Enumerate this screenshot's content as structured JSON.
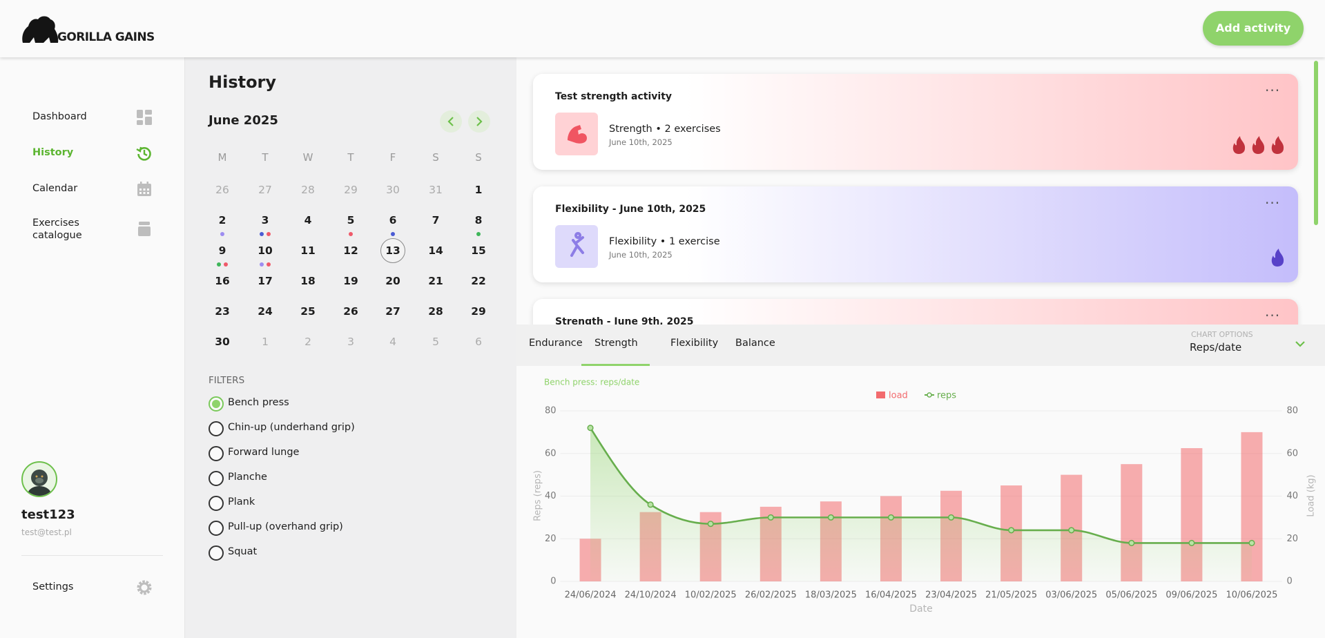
{
  "header": {
    "logo": "GORILLA GAINS",
    "action": "Add activity"
  },
  "nav": [
    {
      "label": "Dashboard"
    },
    {
      "label": "History",
      "active": true
    },
    {
      "label": "Calendar"
    },
    {
      "label": "Exercises catalogue"
    }
  ],
  "user": {
    "name": "test123",
    "email": "test@test.pl"
  },
  "settings": "Settings",
  "history": {
    "title": "History",
    "month": "June 2025",
    "weekdays": [
      "M",
      "T",
      "W",
      "T",
      "F",
      "S",
      "S"
    ],
    "weeks": [
      [
        {
          "day": 26,
          "muted": true
        },
        {
          "day": 27,
          "muted": true
        },
        {
          "day": 28,
          "muted": true
        },
        {
          "day": 29,
          "muted": true
        },
        {
          "day": 30,
          "muted": true
        },
        {
          "day": 31,
          "muted": true
        },
        {
          "day": 1
        }
      ],
      [
        {
          "day": 2,
          "dots": [
            "#9d8df1"
          ]
        },
        {
          "day": 3,
          "dots": [
            "#4a5bd4",
            "#ef5a6a"
          ]
        },
        {
          "day": 4
        },
        {
          "day": 5,
          "dots": [
            "#ef5a6a"
          ]
        },
        {
          "day": 6,
          "dots": [
            "#4a5bd4"
          ]
        },
        {
          "day": 7
        },
        {
          "day": 8,
          "dots": [
            "#3fb65a"
          ]
        }
      ],
      [
        {
          "day": 9,
          "dots": [
            "#3fb65a",
            "#ef5a6a"
          ]
        },
        {
          "day": 10,
          "dots": [
            "#9d8df1",
            "#ef5a6a"
          ]
        },
        {
          "day": 11
        },
        {
          "day": 12
        },
        {
          "day": 13,
          "selected": true
        },
        {
          "day": 14
        },
        {
          "day": 15
        }
      ],
      [
        {
          "day": 16
        },
        {
          "day": 17
        },
        {
          "day": 18
        },
        {
          "day": 19
        },
        {
          "day": 20
        },
        {
          "day": 21
        },
        {
          "day": 22
        }
      ],
      [
        {
          "day": 23
        },
        {
          "day": 24
        },
        {
          "day": 25
        },
        {
          "day": 26
        },
        {
          "day": 27
        },
        {
          "day": 28
        },
        {
          "day": 29
        }
      ],
      [
        {
          "day": 30
        },
        {
          "day": 1,
          "muted": true
        },
        {
          "day": 2,
          "muted": true
        },
        {
          "day": 3,
          "muted": true
        },
        {
          "day": 4,
          "muted": true
        },
        {
          "day": 5,
          "muted": true
        },
        {
          "day": 6,
          "muted": true
        }
      ]
    ]
  },
  "filters": {
    "title": "FILTERS",
    "options": [
      {
        "label": "Bench press",
        "checked": true
      },
      {
        "label": "Chin-up (underhand grip)"
      },
      {
        "label": "Forward lunge"
      },
      {
        "label": "Planche"
      },
      {
        "label": "Plank"
      },
      {
        "label": "Pull-up (overhand grip)"
      },
      {
        "label": "Squat"
      }
    ]
  },
  "activities": [
    {
      "title": "Test strength activity",
      "summary": "Strength • 2 exercises",
      "date": "June 10th, 2025",
      "intensity": 3,
      "color": "#ffc4c7",
      "icon_bg": "#ffd2d5",
      "flame": "#c0323d"
    },
    {
      "title": "Flexibility - June 10th, 2025",
      "summary": "Flexibility • 1 exercise",
      "date": "June 10th, 2025",
      "intensity": 1,
      "color": "#c4bdfb",
      "icon_bg": "#dedafb",
      "flame": "#5842c8"
    },
    {
      "title": "Strength - June 9th, 2025",
      "color": "#ffc4c7"
    }
  ],
  "tabs": [
    {
      "label": "Endurance"
    },
    {
      "label": "Strength",
      "active": true
    },
    {
      "label": "Flexibility"
    },
    {
      "label": "Balance"
    }
  ],
  "chart_options": {
    "label": "CHART OPTIONS",
    "value": "Reps/date"
  },
  "chart_data": {
    "type": "combo",
    "title": "Bench press: reps/date",
    "categories": [
      "24/06/2024",
      "24/10/2024",
      "10/02/2025",
      "26/02/2025",
      "18/03/2025",
      "16/04/2025",
      "23/04/2025",
      "21/05/2025",
      "03/06/2025",
      "05/06/2025",
      "09/06/2025",
      "10/06/2025"
    ],
    "series": [
      {
        "name": "load",
        "type": "bar",
        "axis": "y2",
        "color": "#f26b6e",
        "values": [
          20,
          32.5,
          32.5,
          35,
          37.5,
          40,
          42.5,
          45,
          50,
          55,
          62.5,
          70
        ]
      },
      {
        "name": "reps",
        "type": "line",
        "color": "#67ae4d",
        "values": [
          72,
          36,
          27,
          30,
          30,
          30,
          30,
          24,
          24,
          18,
          18,
          18
        ]
      }
    ],
    "ylim": [
      0,
      80
    ],
    "yticks": [
      0,
      20,
      40,
      60,
      80
    ],
    "y2lim": [
      0,
      80
    ],
    "y2ticks": [
      0,
      20,
      40,
      60,
      80
    ],
    "ylabel": "Reps (reps)",
    "y2label": "Load (kg)",
    "xlabel": "Date",
    "grid": true,
    "legend": "top"
  }
}
